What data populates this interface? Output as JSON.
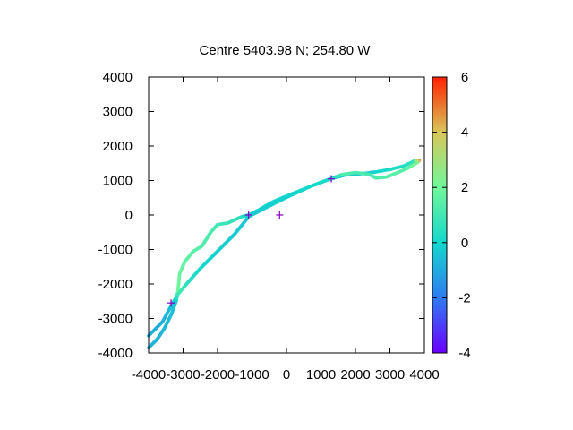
{
  "chart_data": {
    "type": "scatter",
    "title": "Centre 5403.98 N; 254.80  W",
    "xlabel": "",
    "ylabel": "",
    "xlim": [
      -4000,
      4000
    ],
    "ylim": [
      -4000,
      4000
    ],
    "xticks": [
      -4000,
      -3000,
      -2000,
      -1000,
      0,
      1000,
      2000,
      3000,
      4000
    ],
    "yticks": [
      -4000,
      -3000,
      -2000,
      -1000,
      0,
      1000,
      2000,
      3000,
      4000
    ],
    "colorbar": {
      "range": [
        -4,
        6
      ],
      "ticks": [
        -4,
        -2,
        0,
        2,
        4,
        6
      ],
      "palette": [
        "#6a00ff",
        "#2f7bf2",
        "#13d8cc",
        "#72f79a",
        "#d7c65a",
        "#ff2200"
      ]
    },
    "grid": false,
    "series": [
      {
        "values": [
          {
            "x": -4000,
            "y": -3850,
            "c": -0.8
          },
          {
            "x": -3750,
            "y": -3600,
            "c": -0.8
          },
          {
            "x": -3550,
            "y": -3300,
            "c": -0.7
          },
          {
            "x": -3350,
            "y": -2900,
            "c": -0.6
          },
          {
            "x": -3200,
            "y": -2500,
            "c": -0.3
          },
          {
            "x": -3150,
            "y": -2200,
            "c": 2.0
          },
          {
            "x": -3100,
            "y": -1700,
            "c": 1.8
          },
          {
            "x": -2950,
            "y": -1350,
            "c": 1.6
          },
          {
            "x": -2700,
            "y": -1050,
            "c": 1.5
          },
          {
            "x": -2450,
            "y": -900,
            "c": 1.3
          },
          {
            "x": -2200,
            "y": -500,
            "c": 1.2
          },
          {
            "x": -2000,
            "y": -280,
            "c": 1.0
          },
          {
            "x": -1700,
            "y": -230,
            "c": 0.8
          },
          {
            "x": -1300,
            "y": -50,
            "c": 0.4
          },
          {
            "x": -1100,
            "y": 0,
            "c": -0.2
          },
          {
            "x": -800,
            "y": 150,
            "c": -0.1
          },
          {
            "x": -400,
            "y": 380,
            "c": -0.1
          },
          {
            "x": 0,
            "y": 550,
            "c": 0.0
          },
          {
            "x": 500,
            "y": 750,
            "c": 0.1
          },
          {
            "x": 1000,
            "y": 950,
            "c": 0.0
          },
          {
            "x": 1300,
            "y": 1050,
            "c": -0.5
          },
          {
            "x": 1700,
            "y": 1160,
            "c": -0.3
          },
          {
            "x": 2200,
            "y": 1200,
            "c": -0.4
          },
          {
            "x": 2600,
            "y": 1250,
            "c": -0.1
          },
          {
            "x": 3000,
            "y": 1320,
            "c": 0.2
          },
          {
            "x": 3400,
            "y": 1420,
            "c": 0.3
          },
          {
            "x": 3700,
            "y": 1560,
            "c": 0.6
          },
          {
            "x": 3850,
            "y": 1580,
            "c": 5.0
          },
          {
            "x": 3800,
            "y": 1520,
            "c": 2.5
          },
          {
            "x": 3500,
            "y": 1350,
            "c": 1.5
          },
          {
            "x": 3150,
            "y": 1200,
            "c": 1.4
          },
          {
            "x": 2900,
            "y": 1100,
            "c": 1.4
          },
          {
            "x": 2600,
            "y": 1070,
            "c": 1.3
          },
          {
            "x": 2400,
            "y": 1180,
            "c": 1.1
          },
          {
            "x": 2000,
            "y": 1230,
            "c": 1.2
          },
          {
            "x": 1600,
            "y": 1170,
            "c": 1.3
          },
          {
            "x": 1300,
            "y": 1060,
            "c": 0.2
          },
          {
            "x": 700,
            "y": 830,
            "c": 0.1
          },
          {
            "x": 0,
            "y": 510,
            "c": -0.1
          },
          {
            "x": -700,
            "y": 160,
            "c": -0.2
          },
          {
            "x": -1100,
            "y": -50,
            "c": -0.4
          },
          {
            "x": -1500,
            "y": -550,
            "c": -0.3
          },
          {
            "x": -2000,
            "y": -1050,
            "c": -0.2
          },
          {
            "x": -2500,
            "y": -1550,
            "c": 0.0
          },
          {
            "x": -2900,
            "y": -2000,
            "c": 0.5
          },
          {
            "x": -3150,
            "y": -2300,
            "c": 1.0
          },
          {
            "x": -3300,
            "y": -2550,
            "c": -0.5
          },
          {
            "x": -3600,
            "y": -3100,
            "c": -0.9
          },
          {
            "x": -4000,
            "y": -3500,
            "c": -0.8
          }
        ]
      },
      {
        "type": "points",
        "marker": "+",
        "color": "#8a00c8",
        "values": [
          {
            "x": -3350,
            "y": -2550
          },
          {
            "x": -1100,
            "y": 0
          },
          {
            "x": -200,
            "y": 0
          },
          {
            "x": 1300,
            "y": 1050
          }
        ]
      }
    ]
  }
}
